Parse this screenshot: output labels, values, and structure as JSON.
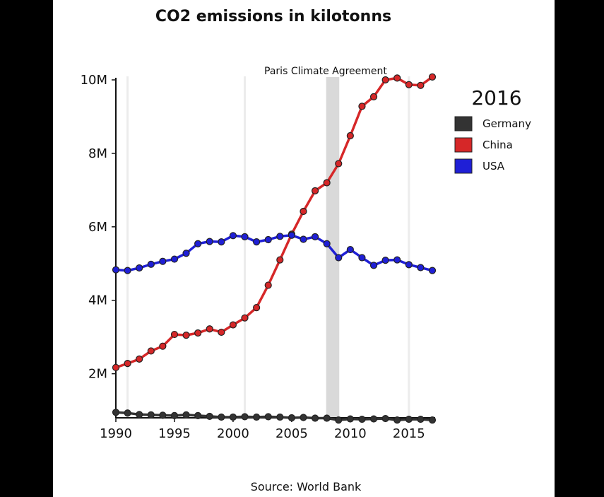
{
  "chart_data": {
    "type": "line",
    "title": "CO2 emissions in kilotonns",
    "source": "Source: World Bank",
    "legend_title": "2016",
    "legend_placement": "right",
    "annotation": "Paris Climate Agreement",
    "highlight_band": [
      2008,
      2009
    ],
    "vertical_guides": [
      1991,
      2001,
      2015
    ],
    "xlim": [
      1990,
      2017
    ],
    "ylim": [
      800000,
      10000000
    ],
    "x_ticks": [
      1990,
      1995,
      2000,
      2005,
      2010,
      2015
    ],
    "y_ticks": [
      {
        "value": 2000000,
        "label": "2M"
      },
      {
        "value": 4000000,
        "label": "4M"
      },
      {
        "value": 6000000,
        "label": "6M"
      },
      {
        "value": 8000000,
        "label": "8M"
      },
      {
        "value": 10000000,
        "label": "10M"
      }
    ],
    "x": [
      1990,
      1991,
      1992,
      1993,
      1994,
      1995,
      1996,
      1997,
      1998,
      1999,
      2000,
      2001,
      2002,
      2003,
      2004,
      2005,
      2006,
      2007,
      2008,
      2009,
      2010,
      2011,
      2012,
      2013,
      2014,
      2015,
      2016,
      2017
    ],
    "series": [
      {
        "name": "Germany",
        "color": "#333333",
        "values": [
          950000,
          930000,
          890000,
          880000,
          870000,
          860000,
          880000,
          860000,
          840000,
          820000,
          820000,
          830000,
          820000,
          830000,
          820000,
          800000,
          810000,
          790000,
          790000,
          740000,
          770000,
          760000,
          770000,
          780000,
          740000,
          760000,
          760000,
          740000
        ]
      },
      {
        "name": "China",
        "color": "#d62728",
        "values": [
          2170000,
          2280000,
          2400000,
          2620000,
          2750000,
          3070000,
          3050000,
          3110000,
          3220000,
          3130000,
          3330000,
          3520000,
          3800000,
          4410000,
          5100000,
          5800000,
          6420000,
          6980000,
          7200000,
          7720000,
          8480000,
          9280000,
          9540000,
          10000000,
          10050000,
          9870000,
          9850000,
          10080000
        ]
      },
      {
        "name": "USA",
        "color": "#1f1fd6",
        "values": [
          4830000,
          4810000,
          4880000,
          4980000,
          5060000,
          5120000,
          5280000,
          5540000,
          5600000,
          5590000,
          5760000,
          5730000,
          5590000,
          5650000,
          5740000,
          5770000,
          5660000,
          5730000,
          5540000,
          5160000,
          5380000,
          5160000,
          4950000,
          5090000,
          5100000,
          4970000,
          4890000,
          4810000
        ]
      }
    ]
  }
}
